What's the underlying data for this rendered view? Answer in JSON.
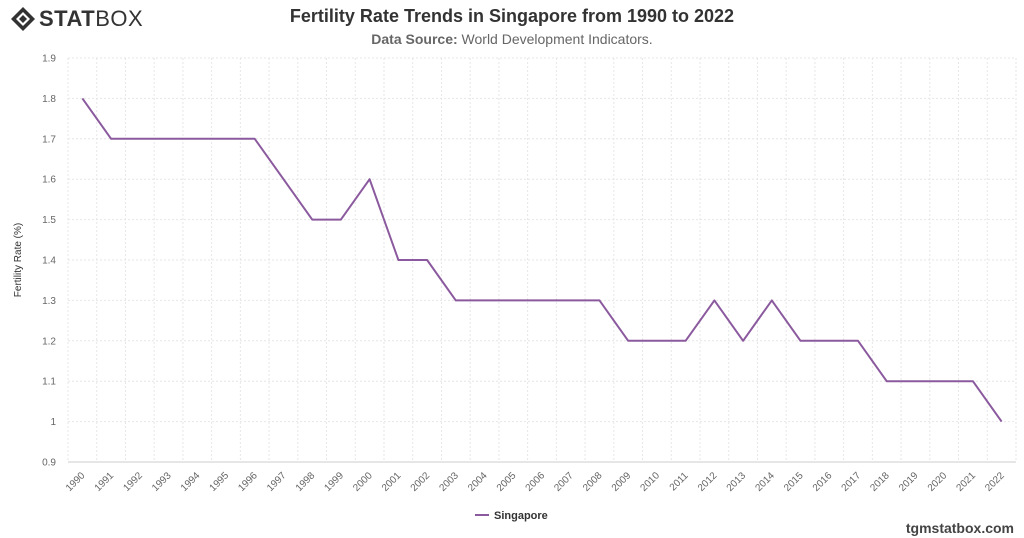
{
  "header": {
    "logo_bold": "STAT",
    "logo_light": "BOX",
    "title": "Fertility Rate Trends in Singapore from 1990 to 2022",
    "subtitle_label": "Data Source:",
    "subtitle_value": " World Development Indicators."
  },
  "footer": {
    "watermark": "tgmstatbox.com"
  },
  "colors": {
    "series": "#8B5A9E",
    "grid": "#e6e6e6",
    "axis": "#cccccc"
  },
  "chart_data": {
    "type": "line",
    "title": "Fertility Rate Trends in Singapore from 1990 to 2022",
    "xlabel": "",
    "ylabel": "Fertility Rate (%)",
    "ylim": [
      0.9,
      1.9
    ],
    "yticks": [
      "0.9",
      "1",
      "1.1",
      "1.2",
      "1.3",
      "1.4",
      "1.5",
      "1.6",
      "1.7",
      "1.8",
      "1.9"
    ],
    "grid": true,
    "legend": "bottom-center",
    "categories": [
      "1990",
      "1991",
      "1992",
      "1993",
      "1994",
      "1995",
      "1996",
      "1997",
      "1998",
      "1999",
      "2000",
      "2001",
      "2002",
      "2003",
      "2004",
      "2005",
      "2006",
      "2007",
      "2008",
      "2009",
      "2010",
      "2011",
      "2012",
      "2013",
      "2014",
      "2015",
      "2016",
      "2017",
      "2018",
      "2019",
      "2020",
      "2021",
      "2022"
    ],
    "series": [
      {
        "name": "Singapore",
        "values": [
          1.8,
          1.7,
          1.7,
          1.7,
          1.7,
          1.7,
          1.7,
          1.6,
          1.5,
          1.5,
          1.6,
          1.4,
          1.4,
          1.3,
          1.3,
          1.3,
          1.3,
          1.3,
          1.3,
          1.2,
          1.2,
          1.2,
          1.3,
          1.2,
          1.3,
          1.2,
          1.2,
          1.2,
          1.1,
          1.1,
          1.1,
          1.1,
          1.0
        ]
      }
    ]
  }
}
